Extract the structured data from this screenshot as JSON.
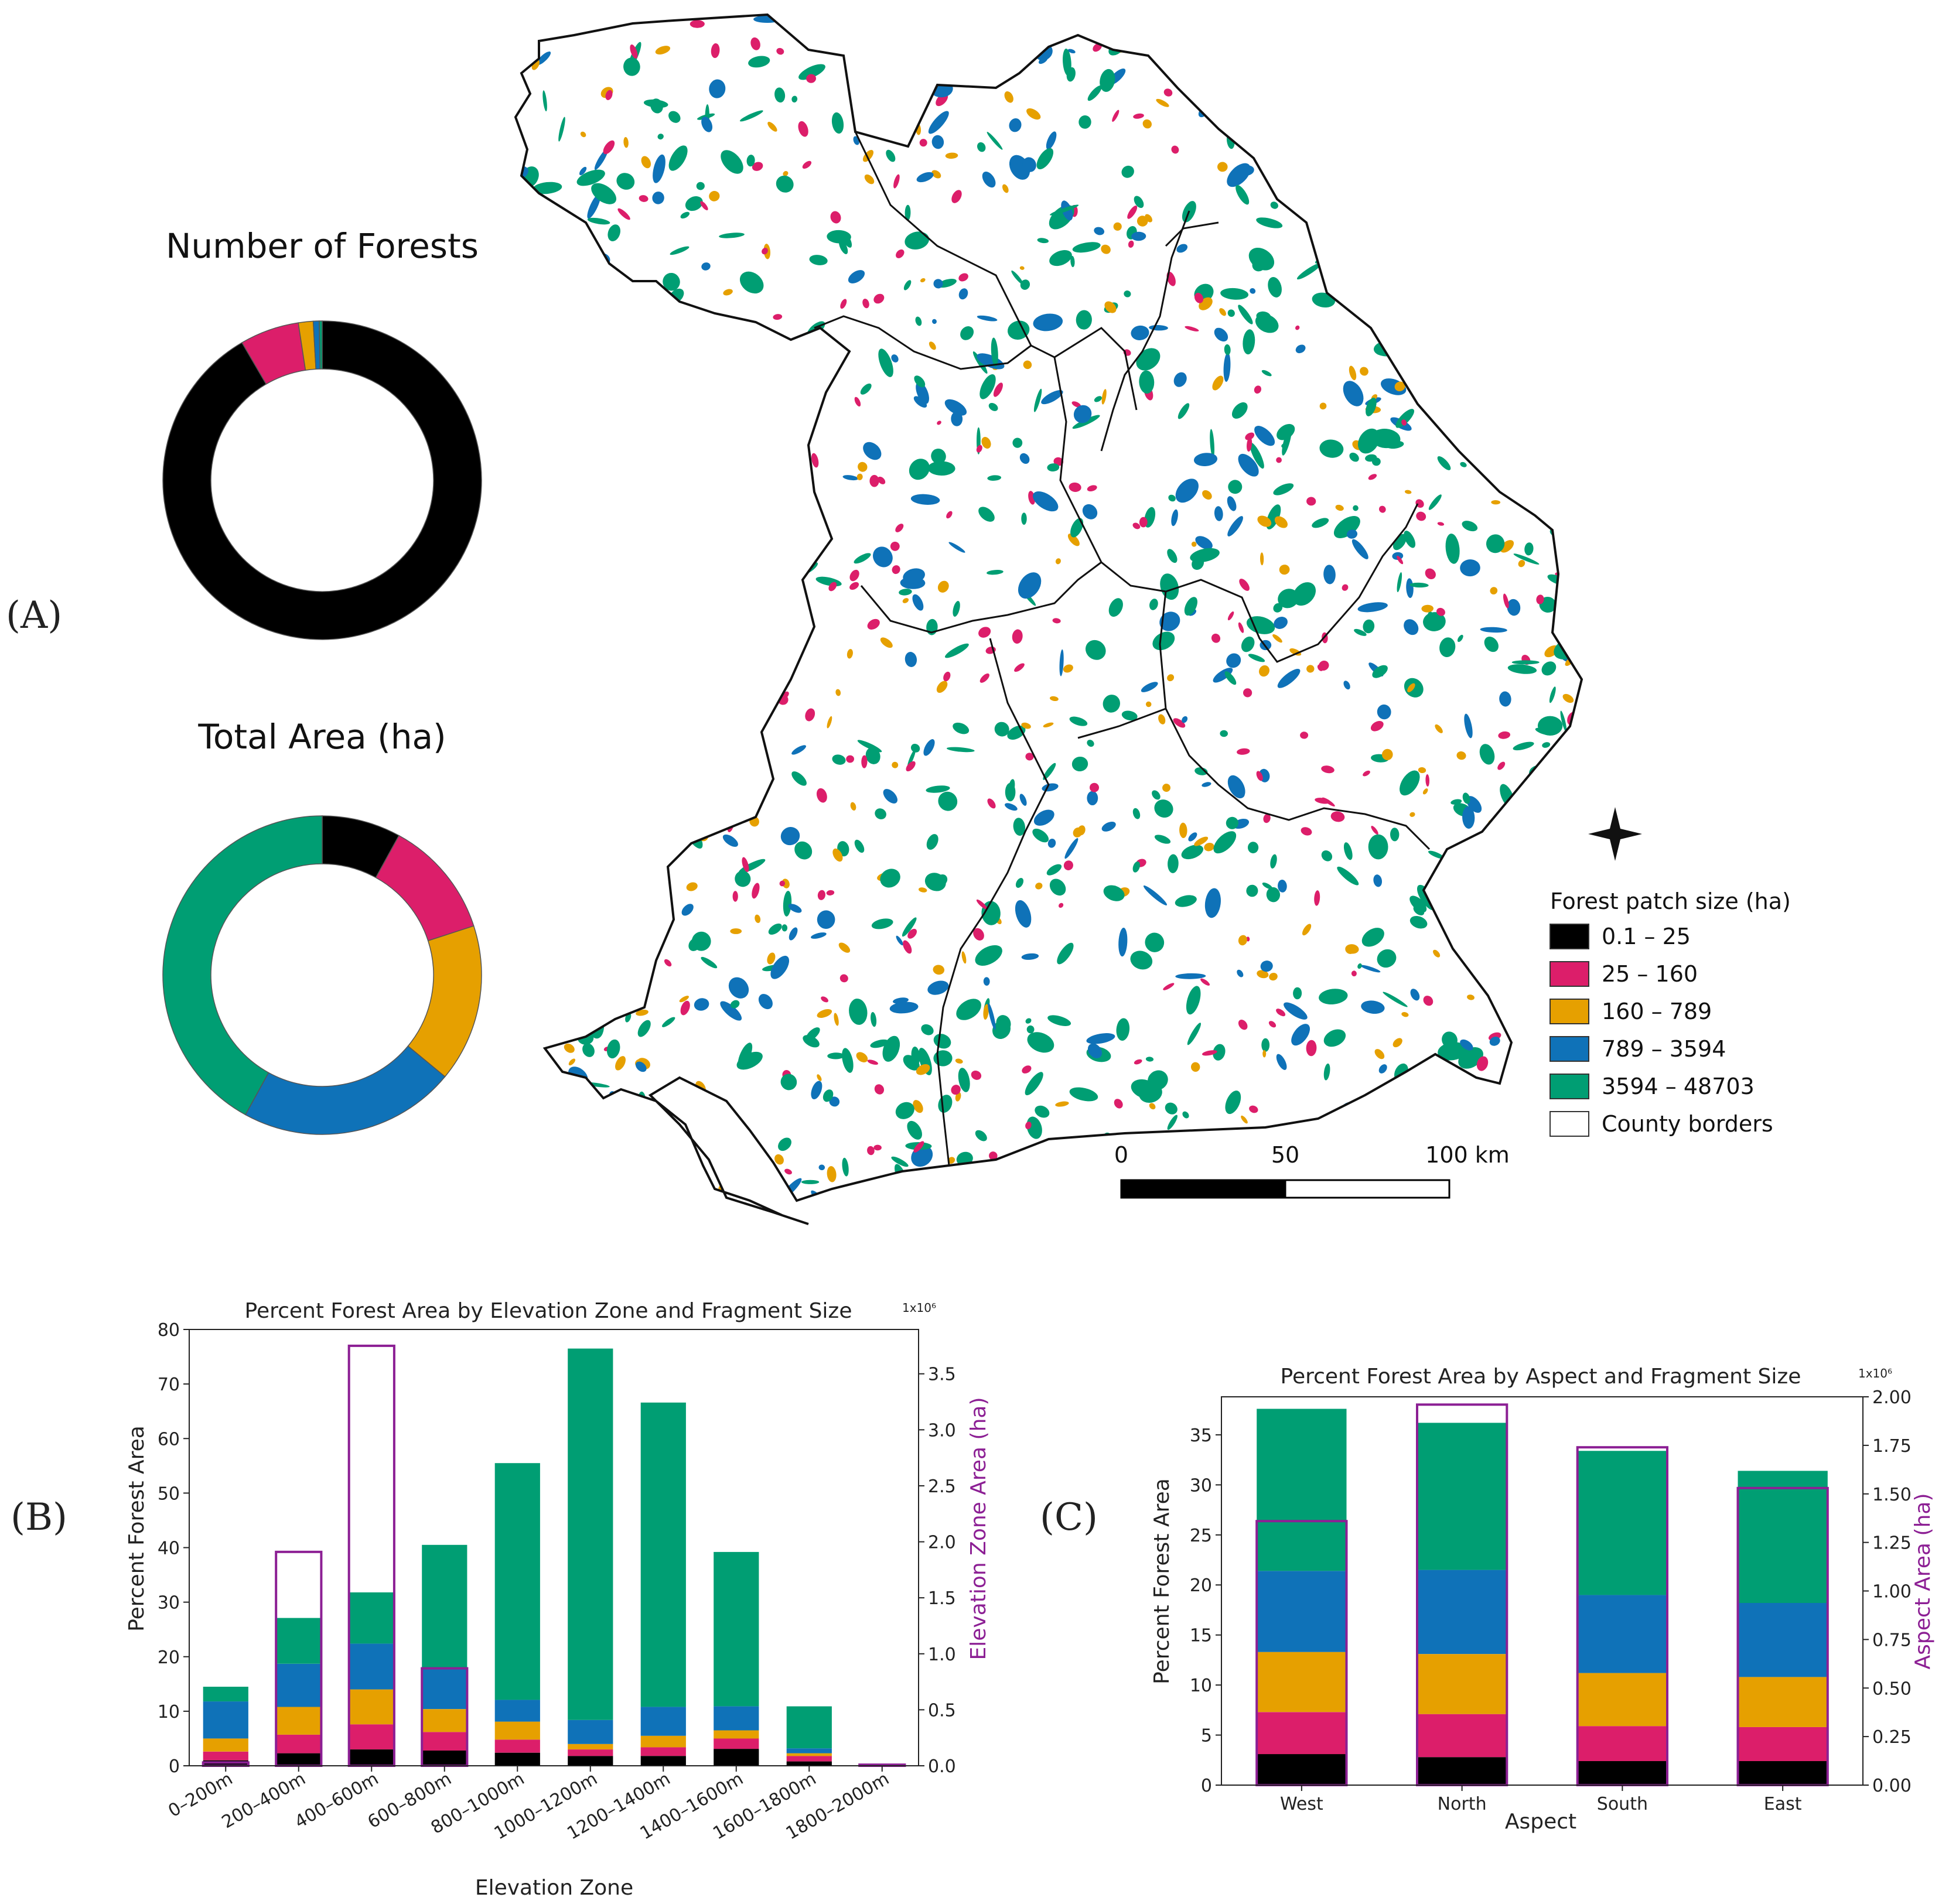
{
  "colors": {
    "size_classes": [
      "#000000",
      "#dc1e6a",
      "#e6a000",
      "#0f72b8",
      "#009e73"
    ],
    "outline": "#8c1f94",
    "border": "#111111"
  },
  "panel_labels": {
    "a": "(A)",
    "b": "(B)",
    "c": "(C)"
  },
  "map": {
    "legend_title": "Forest patch size (ha)",
    "legend_items": [
      "0.1 – 25",
      "25 – 160",
      "160 – 789",
      "789 – 3594",
      "3594 – 48703",
      "County borders"
    ],
    "scale_labels": [
      "0",
      "50",
      "100 km"
    ],
    "north_arrow_icon": "compass-star-icon"
  },
  "chart_data": [
    {
      "type": "pie",
      "title": "Number of Forests",
      "categories": [
        "0.1 – 25",
        "25 – 160",
        "160 – 789",
        "789 – 3594",
        "3594 – 48703"
      ],
      "values": [
        91.6,
        6.0,
        1.5,
        0.6,
        0.3
      ]
    },
    {
      "type": "pie",
      "title": "Total Area (ha)",
      "categories": [
        "0.1 – 25",
        "25 – 160",
        "160 – 789",
        "789 – 3594",
        "3594 – 48703"
      ],
      "values": [
        8,
        12,
        16,
        22,
        42
      ]
    },
    {
      "type": "bar",
      "title": "Percent Forest Area by Elevation Zone and Fragment Size",
      "xlabel": "Elevation Zone",
      "ylabel": "Percent Forest Area",
      "ylabel_right": "Elevation Zone Area (ha)",
      "right_multiplier": "1x10⁶",
      "categories": [
        "0–200m",
        "200–400m",
        "400–600m",
        "600–800m",
        "800–1000m",
        "1000–1200m",
        "1200–1400m",
        "1400–1600m",
        "1600–1800m",
        "1800–2000m"
      ],
      "series": [
        {
          "name": "0.1 – 25",
          "values": [
            1.0,
            2.3,
            3.0,
            2.8,
            2.4,
            1.8,
            1.8,
            3.1,
            0.8,
            0.05
          ]
        },
        {
          "name": "25 – 160",
          "values": [
            1.6,
            3.4,
            4.6,
            3.4,
            2.4,
            1.2,
            1.6,
            1.9,
            1.0,
            0.05
          ]
        },
        {
          "name": "160 – 789",
          "values": [
            2.4,
            5.1,
            6.4,
            4.2,
            3.3,
            1.0,
            2.1,
            1.5,
            0.5,
            0.0
          ]
        },
        {
          "name": "789 – 3594",
          "values": [
            6.8,
            7.9,
            8.4,
            7.5,
            4.0,
            4.4,
            5.3,
            4.4,
            0.9,
            0.0
          ]
        },
        {
          "name": "3594 – 48703",
          "values": [
            2.7,
            8.4,
            9.4,
            22.6,
            43.4,
            68.1,
            55.8,
            28.3,
            7.7,
            0.2
          ]
        }
      ],
      "zone_area_ha": [
        0.03,
        1.91,
        3.75,
        0.87,
        0.0,
        0.0,
        0.0,
        0.0,
        0.0,
        0.01
      ],
      "ylim": [
        0,
        80
      ],
      "yticks": [
        0,
        10,
        20,
        30,
        40,
        50,
        60,
        70,
        80
      ],
      "ylim_right": [
        0,
        3.896
      ],
      "yticks_right": [
        0.0,
        0.5,
        1.0,
        1.5,
        2.0,
        2.5,
        3.0,
        3.5
      ],
      "grid": false
    },
    {
      "type": "bar",
      "title": "Percent Forest Area by Aspect and Fragment Size",
      "xlabel": "Aspect",
      "ylabel": "Percent Forest Area",
      "ylabel_right": "Aspect Area (ha)",
      "right_multiplier": "1x10⁶",
      "categories": [
        "West",
        "North",
        "South",
        "East"
      ],
      "series": [
        {
          "name": "0.1 – 25",
          "values": [
            3.1,
            2.8,
            2.4,
            2.4
          ]
        },
        {
          "name": "25 – 160",
          "values": [
            4.2,
            4.3,
            3.5,
            3.4
          ]
        },
        {
          "name": "160 – 789",
          "values": [
            6.0,
            6.0,
            5.3,
            5.0
          ]
        },
        {
          "name": "789 – 3594",
          "values": [
            8.1,
            8.4,
            7.8,
            7.4
          ]
        },
        {
          "name": "3594 – 48703",
          "values": [
            16.2,
            14.7,
            14.4,
            13.2
          ]
        }
      ],
      "aspect_area_ha": [
        1.36,
        1.96,
        1.74,
        1.53
      ],
      "ylim": [
        0,
        38.8
      ],
      "yticks": [
        0,
        5,
        10,
        15,
        20,
        25,
        30,
        35
      ],
      "ylim_right": [
        0,
        2.0
      ],
      "yticks_right": [
        "0.00",
        "0.25",
        "0.50",
        "0.75",
        "1.00",
        "1.25",
        "1.50",
        "1.75",
        "2.00"
      ],
      "grid": false
    }
  ]
}
